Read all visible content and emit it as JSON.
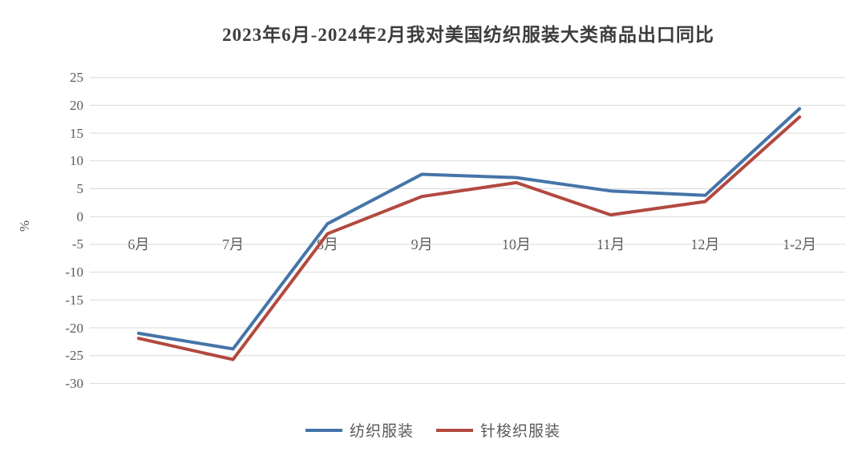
{
  "page": {
    "background_color": "#ffffff"
  },
  "chart_data": {
    "type": "line",
    "title": "2023年6月-2024年2月我对美国纺织服装大类商品出口同比",
    "ylabel": "%",
    "xlabel": "",
    "categories": [
      "6月",
      "7月",
      "8月",
      "9月",
      "10月",
      "11月",
      "12月",
      "1-2月"
    ],
    "series": [
      {
        "name": "纺织服装",
        "color": "#4575A8",
        "values": [
          -21.0,
          -23.8,
          -1.3,
          7.6,
          7.0,
          4.6,
          3.8,
          19.4
        ]
      },
      {
        "name": "针梭织服装",
        "color": "#B2493F",
        "values": [
          -21.9,
          -25.7,
          -3.1,
          3.6,
          6.1,
          0.3,
          2.7,
          17.9
        ]
      }
    ],
    "ylim": [
      -30,
      25
    ],
    "yticks": [
      25,
      20,
      15,
      10,
      5,
      0,
      -5,
      -10,
      -15,
      -20,
      -25,
      -30
    ],
    "ytick_step": 5,
    "grid": true,
    "gridline_color": "#d9d9d9",
    "axis_text_color": "#595959",
    "title_color": "#3d3d3d",
    "legend_position": "bottom",
    "x_labels_at_value": -5,
    "line_width": 4
  }
}
